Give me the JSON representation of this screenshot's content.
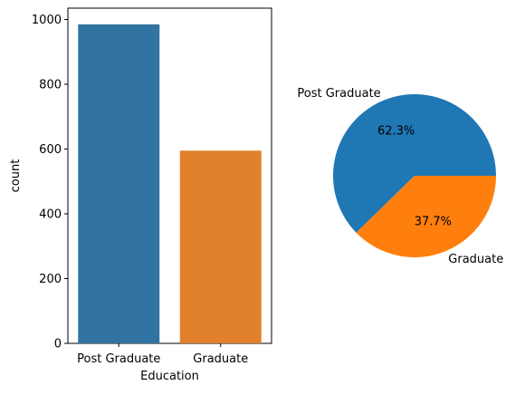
{
  "chart_data": [
    {
      "type": "bar",
      "categories": [
        "Post Graduate",
        "Graduate"
      ],
      "values": [
        985,
        595
      ],
      "xlabel": "Education",
      "ylabel": "count",
      "ylim": [
        0,
        1035
      ],
      "yticks": [
        0,
        200,
        400,
        600,
        800,
        1000
      ],
      "colors": [
        "#3274a1",
        "#e1812c"
      ],
      "grid": false
    },
    {
      "type": "pie",
      "labels": [
        "Post Graduate",
        "Graduate"
      ],
      "values": [
        62.3,
        37.7
      ],
      "value_labels": [
        "62.3%",
        "37.7%"
      ],
      "colors": [
        "#1f77b4",
        "#ff7f0e"
      ]
    }
  ]
}
